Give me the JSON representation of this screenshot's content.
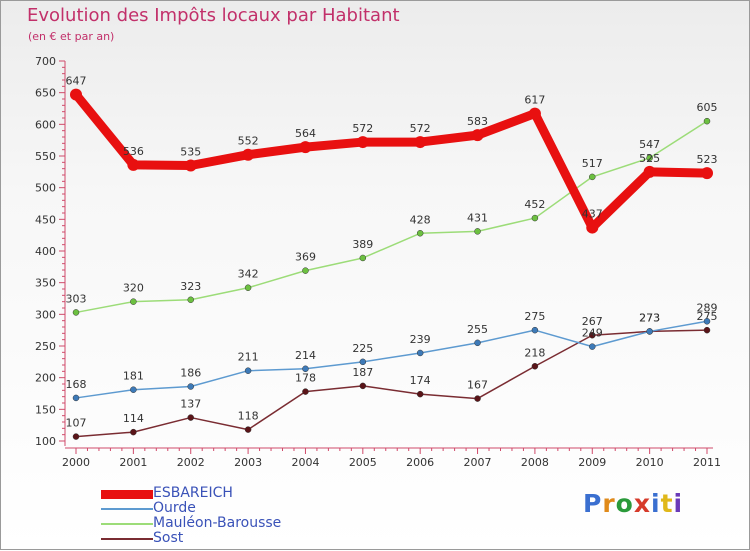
{
  "header": {
    "title": "Evolution des Impôts locaux par Habitant",
    "subtitle": "(en € et par an)"
  },
  "branding": {
    "logo_text": "Proxiti",
    "logo_colors": [
      "#3a6fd0",
      "#e08a1a",
      "#2a9a3a",
      "#d63a2a",
      "#3a6fd0",
      "#e0b81a",
      "#6a3ab8"
    ]
  },
  "chart_data": {
    "type": "line",
    "title": "Evolution des Impôts locaux par Habitant",
    "subtitle": "(en € et par an)",
    "xlabel": "",
    "ylabel": "",
    "x": [
      "2000",
      "2001",
      "2002",
      "2003",
      "2004",
      "2005",
      "2006",
      "2007",
      "2008",
      "2009",
      "2010",
      "2011"
    ],
    "yticks": [
      "100",
      "150",
      "200",
      "250",
      "300",
      "350",
      "400",
      "450",
      "500",
      "550",
      "600",
      "650",
      "700"
    ],
    "ylim": [
      100,
      700
    ],
    "grid": false,
    "legend_position": "bottom-left",
    "series": [
      {
        "name": "ESBAREICH",
        "color": "#e81010",
        "point_color": "#e81010",
        "values": [
          647,
          536,
          535,
          552,
          564,
          572,
          572,
          583,
          617,
          437,
          525,
          523
        ],
        "labels": [
          "647",
          "536",
          "535",
          "552",
          "564",
          "572",
          "572",
          "583",
          "617",
          "437",
          "525",
          "523"
        ]
      },
      {
        "name": "Ourde",
        "color": "#5d9ad0",
        "point_color": "#3d7ab8",
        "values": [
          168,
          181,
          186,
          211,
          214,
          225,
          239,
          255,
          275,
          249,
          273,
          289
        ],
        "labels": [
          "168",
          "181",
          "186",
          "211",
          "214",
          "225",
          "239",
          "255",
          "275",
          "249",
          "273",
          "289"
        ]
      },
      {
        "name": "Mauléon-Barousse",
        "color": "#9cdc78",
        "point_color": "#6cc040",
        "values": [
          303,
          320,
          323,
          342,
          369,
          389,
          428,
          431,
          452,
          517,
          547,
          605
        ],
        "labels": [
          "303",
          "320",
          "323",
          "342",
          "369",
          "389",
          "428",
          "431",
          "452",
          "517",
          "547",
          "605"
        ]
      },
      {
        "name": "Sost",
        "color": "#7a2c32",
        "point_color": "#5a1418",
        "values": [
          107,
          114,
          137,
          118,
          178,
          187,
          174,
          167,
          218,
          267,
          273,
          275
        ],
        "labels": [
          "107",
          "114",
          "137",
          "118",
          "178",
          "187",
          "174",
          "167",
          "218",
          "267",
          "273",
          "275"
        ]
      }
    ]
  }
}
